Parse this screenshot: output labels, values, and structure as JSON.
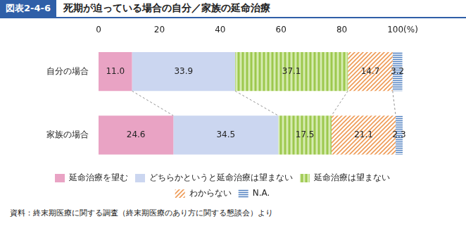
{
  "chart_data": {
    "type": "bar",
    "figure_label": "図表2-4-6",
    "title": "死期が迫っている場合の自分／家族の延命治療",
    "categories": [
      "自分の場合",
      "家族の場合"
    ],
    "series": [
      {
        "name": "延命治療を望む",
        "color": "#e9a3c4",
        "values": [
          11,
          24.6
        ],
        "value_labels": [
          "11.0",
          "24.6"
        ]
      },
      {
        "name": "どちらかというと延命治療は望まない",
        "color": "#cbd6f0",
        "values": [
          33.9,
          34.5
        ]
      },
      {
        "name": "延命治療は望まない",
        "color": "#9dc84e",
        "values": [
          37.1,
          17.5
        ]
      },
      {
        "name": "わからない",
        "color": "#ee9a55",
        "values": [
          14.7,
          21.1
        ]
      },
      {
        "name": "N.A.",
        "color": "#4f7fc0",
        "values": [
          3.2,
          2.3
        ]
      }
    ],
    "xlim": [
      0,
      100
    ],
    "xticks": [
      0,
      20,
      40,
      60,
      80,
      {
        "value": 100,
        "label": "100(%)"
      }
    ],
    "orientation": "horizontal",
    "stacked": true,
    "data_labels": true,
    "grid": false,
    "legend": "bottom",
    "source": "資料：終末期医療に関する調査（終末期医療のあり方に関する懇談会）より"
  }
}
